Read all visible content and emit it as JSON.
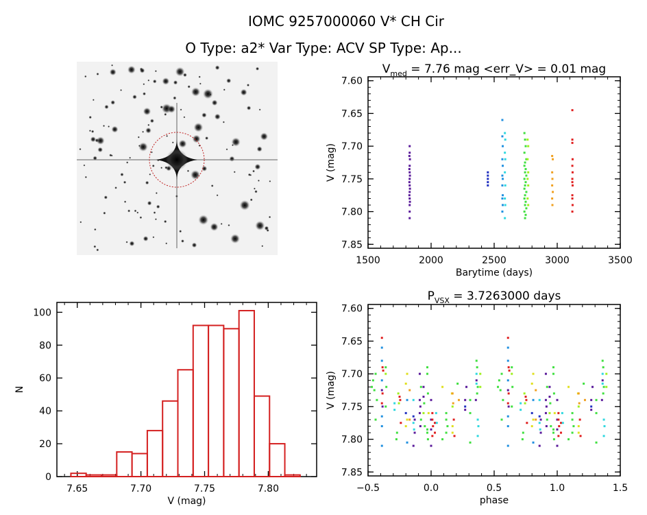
{
  "header": {
    "title": "IOMC 9257000060    V* CH Cir",
    "subtitle": "O Type: a2*  Var Type: ACV  SP Type: Ap..."
  },
  "colors": {
    "purple": "#5a1a9a",
    "blue": "#2030c0",
    "skyblue": "#2090e0",
    "cyan": "#30d8e0",
    "green": "#40e040",
    "lime": "#a0f020",
    "yellow": "#e0e020",
    "orange": "#f0a020",
    "red": "#e02020",
    "hist": "#d42020"
  },
  "chart_data": [
    {
      "id": "lightcurve",
      "type": "scatter",
      "title_main": "V",
      "title_sub": "med",
      "title_rest": " = 7.76 mag <err_V> = 0.01 mag",
      "xlabel": "Barytime (days)",
      "ylabel": "V (mag)",
      "xlim": [
        1500,
        3500
      ],
      "ylim": [
        7.594,
        7.856
      ],
      "y_reversed": true,
      "xticks": [
        1500,
        2000,
        2500,
        3000,
        3500
      ],
      "xtick_labels": [
        "1500",
        "2000",
        "2500",
        "3000",
        "3500"
      ],
      "xminor": 100,
      "yticks": [
        7.6,
        7.65,
        7.7,
        7.75,
        7.8,
        7.85
      ],
      "ytick_labels": [
        "7.60",
        "7.65",
        "7.70",
        "7.75",
        "7.80",
        "7.85"
      ],
      "yminor": 0.01,
      "groups": [
        {
          "color": "purple",
          "points": [
            [
              1830,
              7.7
            ],
            [
              1830,
              7.71
            ],
            [
              1828,
              7.715
            ],
            [
              1832,
              7.72
            ],
            [
              1830,
              7.73
            ],
            [
              1828,
              7.735
            ],
            [
              1830,
              7.74
            ],
            [
              1832,
              7.745
            ],
            [
              1830,
              7.75
            ],
            [
              1828,
              7.755
            ],
            [
              1830,
              7.76
            ],
            [
              1832,
              7.765
            ],
            [
              1830,
              7.77
            ],
            [
              1828,
              7.775
            ],
            [
              1830,
              7.78
            ],
            [
              1832,
              7.785
            ],
            [
              1830,
              7.79
            ],
            [
              1830,
              7.8
            ],
            [
              1830,
              7.81
            ]
          ]
        },
        {
          "color": "blue",
          "points": [
            [
              2450,
              7.74
            ],
            [
              2450,
              7.745
            ],
            [
              2450,
              7.75
            ],
            [
              2450,
              7.755
            ],
            [
              2450,
              7.76
            ]
          ]
        },
        {
          "color": "skyblue",
          "points": [
            [
              2565,
              7.66
            ],
            [
              2565,
              7.685
            ],
            [
              2568,
              7.7
            ],
            [
              2565,
              7.72
            ],
            [
              2568,
              7.73
            ],
            [
              2565,
              7.745
            ],
            [
              2568,
              7.75
            ],
            [
              2565,
              7.76
            ],
            [
              2568,
              7.775
            ],
            [
              2565,
              7.78
            ],
            [
              2568,
              7.79
            ],
            [
              2565,
              7.8
            ]
          ]
        },
        {
          "color": "cyan",
          "points": [
            [
              2585,
              7.68
            ],
            [
              2588,
              7.69
            ],
            [
              2585,
              7.71
            ],
            [
              2588,
              7.72
            ],
            [
              2585,
              7.74
            ],
            [
              2588,
              7.76
            ],
            [
              2585,
              7.78
            ],
            [
              2588,
              7.79
            ],
            [
              2585,
              7.81
            ]
          ]
        },
        {
          "color": "green",
          "points": [
            [
              2740,
              7.68
            ],
            [
              2745,
              7.69
            ],
            [
              2750,
              7.7
            ],
            [
              2740,
              7.71
            ],
            [
              2755,
              7.72
            ],
            [
              2745,
              7.725
            ],
            [
              2740,
              7.73
            ],
            [
              2750,
              7.735
            ],
            [
              2745,
              7.74
            ],
            [
              2755,
              7.745
            ],
            [
              2740,
              7.75
            ],
            [
              2750,
              7.755
            ],
            [
              2745,
              7.76
            ],
            [
              2740,
              7.765
            ],
            [
              2755,
              7.77
            ],
            [
              2745,
              7.775
            ],
            [
              2740,
              7.78
            ],
            [
              2750,
              7.785
            ],
            [
              2745,
              7.79
            ],
            [
              2755,
              7.795
            ],
            [
              2740,
              7.8
            ],
            [
              2750,
              7.805
            ],
            [
              2745,
              7.81
            ]
          ]
        },
        {
          "color": "lime",
          "points": [
            [
              2765,
              7.69
            ],
            [
              2770,
              7.7
            ],
            [
              2765,
              7.72
            ],
            [
              2770,
              7.74
            ],
            [
              2765,
              7.75
            ],
            [
              2770,
              7.76
            ],
            [
              2765,
              7.78
            ],
            [
              2770,
              7.79
            ]
          ]
        },
        {
          "color": "orange",
          "points": [
            [
              2960,
              7.715
            ],
            [
              2965,
              7.72
            ],
            [
              2960,
              7.74
            ],
            [
              2962,
              7.75
            ],
            [
              2960,
              7.76
            ],
            [
              2965,
              7.77
            ],
            [
              2960,
              7.78
            ],
            [
              2962,
              7.79
            ]
          ]
        },
        {
          "color": "red",
          "points": [
            [
              3120,
              7.645
            ],
            [
              3120,
              7.69
            ],
            [
              3120,
              7.695
            ],
            [
              3122,
              7.72
            ],
            [
              3120,
              7.73
            ],
            [
              3122,
              7.74
            ],
            [
              3120,
              7.75
            ],
            [
              3120,
              7.755
            ],
            [
              3122,
              7.76
            ],
            [
              3120,
              7.775
            ],
            [
              3120,
              7.78
            ],
            [
              3122,
              7.79
            ],
            [
              3120,
              7.8
            ]
          ]
        }
      ]
    },
    {
      "id": "histogram",
      "type": "bar",
      "xlabel": "V (mag)",
      "ylabel": "N",
      "xlim": [
        7.634,
        7.838
      ],
      "ylim": [
        0,
        106
      ],
      "xticks": [
        7.65,
        7.7,
        7.75,
        7.8
      ],
      "xtick_labels": [
        "7.65",
        "7.70",
        "7.75",
        "7.80"
      ],
      "xminor": 0.01,
      "yticks": [
        0,
        20,
        40,
        60,
        80,
        100
      ],
      "ytick_labels": [
        "0",
        "20",
        "40",
        "60",
        "80",
        "100"
      ],
      "bin_start": 7.645,
      "bin_width": 0.012,
      "values": [
        2,
        1,
        1,
        15,
        14,
        28,
        46,
        65,
        92,
        92,
        90,
        101,
        49,
        20,
        1
      ]
    },
    {
      "id": "phased",
      "type": "scatter",
      "title_main": "P",
      "title_sub": "VSX",
      "title_rest": " = 3.7263000 days",
      "xlabel": "phase",
      "ylabel": "V (mag)",
      "xlim": [
        -0.5,
        1.5
      ],
      "ylim": [
        7.594,
        7.856
      ],
      "y_reversed": true,
      "xticks": [
        -0.5,
        0.0,
        0.5,
        1.0,
        1.5
      ],
      "xtick_labels": [
        "−0.5",
        "0.0",
        "0.5",
        "1.0",
        "1.5"
      ],
      "xminor": 0.1,
      "yticks": [
        7.6,
        7.65,
        7.7,
        7.75,
        7.8,
        7.85
      ],
      "ytick_labels": [
        "7.60",
        "7.65",
        "7.70",
        "7.75",
        "7.80",
        "7.85"
      ],
      "yminor": 0.01,
      "phase_repeat": 1,
      "points": [
        [
          -0.47,
          7.72,
          "green"
        ],
        [
          -0.46,
          7.71,
          "green"
        ],
        [
          -0.45,
          7.725,
          "green"
        ],
        [
          -0.44,
          7.7,
          "green"
        ],
        [
          -0.43,
          7.74,
          "green"
        ],
        [
          -0.44,
          7.77,
          "green"
        ],
        [
          -0.39,
          7.645,
          "red"
        ],
        [
          -0.39,
          7.66,
          "skyblue"
        ],
        [
          -0.39,
          7.68,
          "skyblue"
        ],
        [
          -0.385,
          7.69,
          "red"
        ],
        [
          -0.38,
          7.695,
          "red"
        ],
        [
          -0.39,
          7.71,
          "skyblue"
        ],
        [
          -0.385,
          7.73,
          "red"
        ],
        [
          -0.39,
          7.745,
          "red"
        ],
        [
          -0.385,
          7.75,
          "purple"
        ],
        [
          -0.39,
          7.725,
          "purple"
        ],
        [
          -0.39,
          7.765,
          "skyblue"
        ],
        [
          -0.39,
          7.78,
          "skyblue"
        ],
        [
          -0.39,
          7.81,
          "skyblue"
        ],
        [
          -0.36,
          7.69,
          "green"
        ],
        [
          -0.36,
          7.7,
          "lime"
        ],
        [
          -0.355,
          7.72,
          "green"
        ],
        [
          -0.36,
          7.75,
          "green"
        ],
        [
          -0.29,
          7.745,
          "cyan"
        ],
        [
          -0.29,
          7.755,
          "cyan"
        ],
        [
          -0.25,
          7.735,
          "red"
        ],
        [
          -0.245,
          7.74,
          "red"
        ],
        [
          -0.26,
          7.73,
          "lime"
        ],
        [
          -0.255,
          7.745,
          "lime"
        ],
        [
          -0.27,
          7.79,
          "green"
        ],
        [
          -0.275,
          7.8,
          "green"
        ],
        [
          -0.24,
          7.775,
          "red"
        ],
        [
          -0.19,
          7.7,
          "yellow"
        ],
        [
          -0.2,
          7.715,
          "yellow"
        ],
        [
          -0.19,
          7.77,
          "yellow"
        ],
        [
          -0.2,
          7.78,
          "yellow"
        ],
        [
          -0.19,
          7.74,
          "skyblue"
        ],
        [
          -0.2,
          7.76,
          "blue"
        ],
        [
          -0.19,
          7.805,
          "skyblue"
        ],
        [
          -0.17,
          7.725,
          "orange"
        ],
        [
          -0.17,
          7.77,
          "orange"
        ],
        [
          -0.14,
          7.74,
          "cyan"
        ],
        [
          -0.14,
          7.775,
          "cyan"
        ],
        [
          -0.135,
          7.785,
          "cyan"
        ],
        [
          -0.14,
          7.765,
          "blue"
        ],
        [
          -0.13,
          7.77,
          "purple"
        ],
        [
          -0.13,
          7.79,
          "purple"
        ],
        [
          -0.14,
          7.81,
          "purple"
        ],
        [
          -0.09,
          7.7,
          "purple"
        ],
        [
          -0.09,
          7.74,
          "purple"
        ],
        [
          -0.085,
          7.75,
          "purple"
        ],
        [
          -0.09,
          7.76,
          "purple"
        ],
        [
          -0.085,
          7.78,
          "purple"
        ],
        [
          -0.08,
          7.72,
          "green"
        ],
        [
          -0.08,
          7.77,
          "green"
        ],
        [
          -0.06,
          7.72,
          "purple"
        ],
        [
          -0.06,
          7.735,
          "purple"
        ],
        [
          -0.055,
          7.745,
          "green"
        ],
        [
          -0.06,
          7.76,
          "lime"
        ],
        [
          -0.05,
          7.78,
          "green"
        ],
        [
          -0.03,
          7.69,
          "green"
        ],
        [
          -0.03,
          7.7,
          "green"
        ],
        [
          -0.025,
          7.73,
          "green"
        ],
        [
          -0.03,
          7.79,
          "green"
        ],
        [
          -0.025,
          7.8,
          "green"
        ],
        [
          -0.03,
          7.785,
          "green"
        ],
        [
          -0.02,
          7.76,
          "yellow"
        ],
        [
          0.0,
          7.74,
          "purple"
        ],
        [
          0.0,
          7.77,
          "purple"
        ],
        [
          0.0,
          7.785,
          "purple"
        ],
        [
          0.0,
          7.81,
          "purple"
        ],
        [
          0.01,
          7.76,
          "red"
        ],
        [
          0.01,
          7.77,
          "red"
        ],
        [
          0.015,
          7.78,
          "red"
        ],
        [
          0.01,
          7.795,
          "red"
        ],
        [
          0.03,
          7.775,
          "red"
        ],
        [
          0.03,
          7.79,
          "red"
        ],
        [
          0.04,
          7.76,
          "cyan"
        ],
        [
          0.045,
          7.775,
          "cyan"
        ],
        [
          0.09,
          7.72,
          "yellow"
        ],
        [
          0.09,
          7.8,
          "green"
        ],
        [
          0.12,
          7.76,
          "green"
        ],
        [
          0.12,
          7.77,
          "green"
        ],
        [
          0.13,
          7.78,
          "green"
        ],
        [
          0.12,
          7.79,
          "green"
        ],
        [
          0.17,
          7.78,
          "yellow"
        ],
        [
          0.17,
          7.79,
          "yellow"
        ],
        [
          0.165,
          7.73,
          "yellow"
        ],
        [
          0.17,
          7.75,
          "lime"
        ],
        [
          0.17,
          7.73,
          "orange"
        ],
        [
          0.175,
          7.745,
          "orange"
        ],
        [
          0.18,
          7.77,
          "red"
        ],
        [
          0.185,
          7.795,
          "red"
        ],
        [
          0.22,
          7.74,
          "orange"
        ],
        [
          0.21,
          7.715,
          "green"
        ],
        [
          0.27,
          7.74,
          "purple"
        ],
        [
          0.27,
          7.755,
          "purple"
        ],
        [
          0.28,
          7.72,
          "purple"
        ],
        [
          0.27,
          7.75,
          "blue"
        ],
        [
          0.31,
          7.74,
          "green"
        ],
        [
          0.31,
          7.76,
          "green"
        ],
        [
          0.31,
          7.805,
          "green"
        ],
        [
          0.36,
          7.68,
          "green"
        ],
        [
          0.365,
          7.69,
          "green"
        ],
        [
          0.36,
          7.7,
          "cyan"
        ],
        [
          0.37,
          7.72,
          "green"
        ],
        [
          0.36,
          7.715,
          "cyan"
        ],
        [
          0.365,
          7.73,
          "green"
        ],
        [
          0.37,
          7.77,
          "cyan"
        ],
        [
          0.375,
          7.78,
          "cyan"
        ],
        [
          0.37,
          7.795,
          "cyan"
        ],
        [
          0.355,
          7.74,
          "purple"
        ],
        [
          0.36,
          7.71,
          "purple"
        ],
        [
          0.39,
          7.7,
          "lime"
        ],
        [
          0.39,
          7.72,
          "lime"
        ]
      ]
    }
  ],
  "image_panel": {
    "marker_color": "#c02020"
  }
}
